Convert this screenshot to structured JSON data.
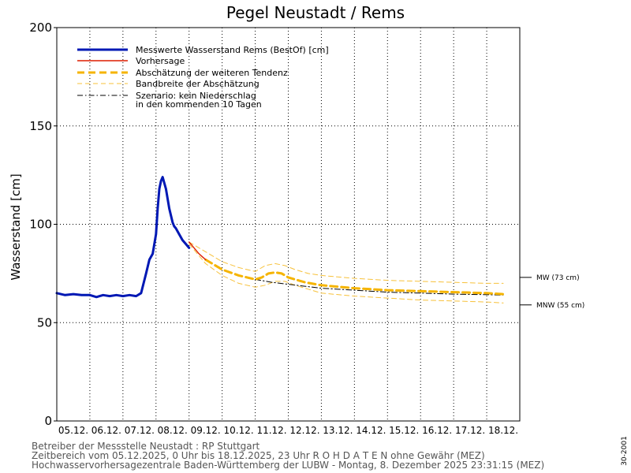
{
  "chart_data": {
    "type": "line",
    "title": "Pegel Neustadt / Rems",
    "ylabel": "Wasserstand [cm]",
    "xlabel": "",
    "ylim": [
      0,
      200
    ],
    "y_ticks": [
      0,
      50,
      100,
      150,
      200
    ],
    "x_unit": "days since 05.12.2025 00:00",
    "xlim": [
      0,
      14
    ],
    "day_labels": [
      "05.12.",
      "06.12.",
      "07.12.",
      "08.12.",
      "09.12.",
      "10.12.",
      "11.12.",
      "12.12.",
      "13.12.",
      "14.12.",
      "15.12.",
      "16.12.",
      "17.12.",
      "18.12."
    ],
    "grid": true,
    "legend": [
      {
        "label": "Messwerte Wasserstand Rems  (BestOf)  [cm]",
        "color": "#0018b4",
        "style": "solid-thick"
      },
      {
        "label": "Vorhersage",
        "color": "#dd1d00",
        "style": "solid"
      },
      {
        "label": "Abschätzung der weiteren Tendenz",
        "color": "#f5b400",
        "style": "dashed-thick"
      },
      {
        "label": "Bandbreite der Abschätzung",
        "color": "#f7c13a",
        "style": "dashed"
      },
      {
        "label": "Szenario: kein Niederschlag",
        "label2": "in den kommenden 10 Tagen",
        "color": "#000000",
        "style": "dashdot"
      }
    ],
    "series": [
      {
        "name": "Messwerte Wasserstand Rems (BestOf) [cm]",
        "color": "#0018b4",
        "x": [
          0.0,
          0.25,
          0.5,
          0.75,
          1.0,
          1.2,
          1.4,
          1.6,
          1.8,
          2.0,
          2.2,
          2.4,
          2.55,
          2.7,
          2.8,
          2.9,
          3.0,
          3.05,
          3.1,
          3.15,
          3.2,
          3.3,
          3.4,
          3.5,
          3.55,
          3.6,
          3.7,
          3.8,
          3.9,
          4.0
        ],
        "y": [
          65,
          64,
          64.5,
          64,
          64,
          63,
          64,
          63.5,
          64,
          63.5,
          64,
          63.5,
          65,
          75,
          82,
          85,
          95,
          108,
          118,
          122,
          124,
          118,
          108,
          101,
          99,
          98,
          95,
          92,
          90,
          88
        ]
      },
      {
        "name": "Vorhersage",
        "color": "#dd1d00",
        "x": [
          4.0,
          4.1,
          4.2,
          4.3,
          4.4,
          4.5
        ],
        "y": [
          91,
          89,
          87,
          85,
          83.5,
          82
        ]
      },
      {
        "name": "Abschätzung der weiteren Tendenz",
        "color": "#f5b400",
        "x": [
          4.5,
          5.0,
          5.5,
          6.0,
          6.2,
          6.4,
          6.6,
          6.8,
          7.0,
          7.5,
          8.0,
          9.0,
          10.0,
          11.0,
          12.0,
          13.0,
          13.5
        ],
        "y": [
          82,
          77,
          74,
          72,
          73,
          75,
          75.5,
          75,
          73,
          70.5,
          69,
          67.5,
          66.5,
          66,
          65.5,
          65,
          64.5
        ]
      },
      {
        "name": "Bandbreite der Abschätzung (oben)",
        "color": "#f7c13a",
        "x": [
          4.0,
          4.5,
          5.0,
          5.5,
          6.0,
          6.3,
          6.6,
          6.9,
          7.2,
          7.6,
          8.0,
          9.0,
          10.0,
          11.0,
          12.0,
          13.0,
          13.5
        ],
        "y": [
          91,
          86,
          81,
          78,
          76,
          79,
          80,
          79,
          77,
          75,
          74,
          72.5,
          71.5,
          71,
          70.5,
          70,
          70
        ]
      },
      {
        "name": "Bandbreite der Abschätzung (unten)",
        "color": "#f7c13a",
        "x": [
          4.0,
          4.5,
          5.0,
          5.5,
          6.0,
          6.3,
          6.6,
          6.9,
          7.2,
          7.6,
          8.0,
          9.0,
          10.0,
          11.0,
          12.0,
          13.0,
          13.5
        ],
        "y": [
          90,
          80,
          74,
          70,
          68,
          69,
          71,
          71,
          69,
          67,
          65,
          63.5,
          62.5,
          61.5,
          61,
          60.5,
          60
        ]
      },
      {
        "name": "Szenario: kein Niederschlag in den kommenden 10 Tagen",
        "color": "#000000",
        "x": [
          6.0,
          6.5,
          7.0,
          7.5,
          8.0,
          9.0,
          10.0,
          11.0,
          12.0,
          13.0,
          13.5
        ],
        "y": [
          72,
          70.5,
          69.5,
          68.5,
          67.5,
          66.5,
          65.5,
          65,
          64.5,
          64.2,
          64
        ]
      }
    ],
    "reference_lines": [
      {
        "label": "MW (73 cm)",
        "value": 73
      },
      {
        "label": "MNW (55 cm)",
        "value": 55
      }
    ]
  },
  "footer": {
    "line1": "Betreiber der Messstelle Neustadt : RP Stuttgart",
    "line2": "Zeitbereich vom 05.12.2025, 0 Uhr bis 18.12.2025, 23 Uhr    R O H D A T E N ohne Gewähr (MEZ)",
    "line3": "Hochwasservorhersagezentrale Baden-Württemberg der LUBW - Montag, 8. Dezember 2025 23:31:15 (MEZ)"
  },
  "side_label": "30-2001"
}
